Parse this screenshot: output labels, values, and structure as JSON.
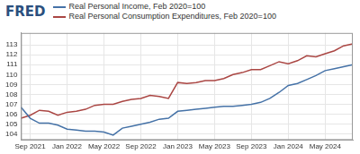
{
  "chart_data": {
    "type": "line",
    "title": "FRED",
    "categories": [
      null,
      "Sep 2021",
      null,
      null,
      null,
      "Jan 2022",
      null,
      null,
      null,
      "May 2022",
      null,
      null,
      null,
      "Sep 2022",
      null,
      null,
      null,
      "Jan 2023",
      null,
      null,
      null,
      "May 2023",
      null,
      null,
      null,
      "Sep 2023",
      null,
      null,
      null,
      "Jan 2024",
      null,
      null,
      null,
      "May 2024",
      null,
      null,
      null
    ],
    "series": [
      {
        "name": "Real Personal Income, Feb 2020=100",
        "color": "#4572a7",
        "values": [
          106.7,
          105.6,
          105.1,
          105.1,
          104.9,
          104.5,
          104.4,
          104.3,
          104.3,
          104.2,
          103.9,
          104.6,
          104.8,
          105.0,
          105.2,
          105.5,
          105.6,
          106.3,
          106.4,
          106.5,
          106.6,
          106.7,
          106.8,
          106.8,
          106.9,
          107.0,
          107.2,
          107.6,
          108.2,
          108.9,
          109.1,
          109.5,
          109.9,
          110.4,
          110.6,
          110.8,
          111.0
        ]
      },
      {
        "name": "Real Personal Consumption Expenditures, Feb 2020=100",
        "color": "#aa4643",
        "values": [
          105.6,
          105.9,
          106.4,
          106.3,
          105.9,
          106.2,
          106.3,
          106.5,
          106.9,
          107.0,
          107.0,
          107.3,
          107.5,
          107.6,
          107.9,
          107.8,
          107.6,
          109.2,
          109.1,
          109.2,
          109.4,
          109.4,
          109.6,
          110.0,
          110.2,
          110.5,
          110.5,
          110.9,
          111.3,
          111.1,
          111.4,
          111.9,
          111.8,
          112.1,
          112.4,
          112.9,
          113.1
        ]
      }
    ],
    "ylim": [
      103.4,
      114.2
    ],
    "yticks": [
      104,
      105,
      106,
      107,
      108,
      109,
      110,
      111,
      112,
      113
    ],
    "grid": true,
    "legend": "top-left"
  }
}
